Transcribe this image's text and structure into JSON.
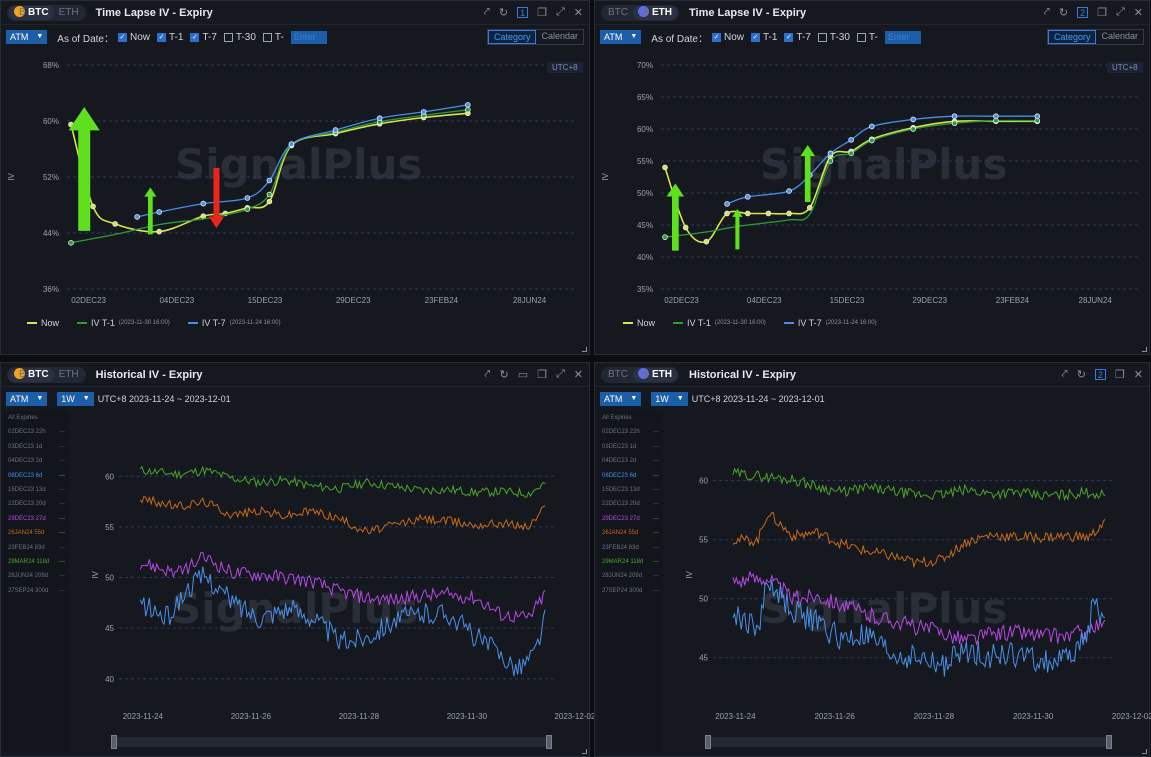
{
  "colors": {
    "now": "#d8e44a",
    "t1": "#2e9a3a",
    "t7": "#4a8fe6",
    "up_arrow": "#5fe01c",
    "down_arrow": "#e8261c",
    "h_green": "#4ca32a",
    "h_orange": "#c46a18",
    "h_purple": "#b44ae0",
    "h_blue": "#4a8fe6"
  },
  "panels": [
    {
      "coin": "BTC",
      "coin_glyph": "B",
      "toggle": [
        "BTC",
        "ETH"
      ],
      "title": "Time Lapse IV - Expiry",
      "badge": "1",
      "mode": "ATM",
      "as_of_label": "As of Date：",
      "checks": [
        {
          "label": "Now",
          "on": true
        },
        {
          "label": "T-1",
          "on": true
        },
        {
          "label": "T-7",
          "on": true
        },
        {
          "label": "T-30",
          "on": false
        },
        {
          "label": "T-",
          "on": false
        }
      ],
      "enter": "Enter",
      "seg": [
        "Category",
        "Calendar"
      ],
      "utc": "UTC+8",
      "watermark": "SignalPlus",
      "legend": [
        {
          "key": "now",
          "name": "Now",
          "ts": ""
        },
        {
          "key": "t1",
          "name": "IV T-1",
          "ts": "(2023-11-30 16:00)"
        },
        {
          "key": "t7",
          "name": "IV T-7",
          "ts": "(2023-11-24 16:00)"
        }
      ],
      "chart_data": {
        "type": "line",
        "xticks": [
          "02DEC23",
          "04DEC23",
          "15DEC23",
          "29DEC23",
          "23FEB24",
          "28JUN24"
        ],
        "yticks": [
          "68%",
          "60%",
          "52%",
          "44%",
          "36%"
        ],
        "ylabel": "IV",
        "ylim": [
          36,
          68
        ],
        "xrange": [
          0,
          11
        ],
        "series": [
          {
            "key": "now",
            "name": "Now",
            "x": [
              0,
              0.5,
              1,
              2,
              3,
              3.5,
              4,
              4.5,
              5,
              6,
              7,
              8,
              9
            ],
            "y": [
              59.5,
              47.8,
              45.3,
              44.2,
              46.4,
              46.8,
              47.6,
              48.5,
              56.5,
              58.2,
              59.6,
              60.5,
              61.1
            ]
          },
          {
            "key": "t1",
            "name": "IV T-1",
            "x": [
              0,
              1,
              2,
              3,
              3.5,
              4,
              4.5,
              5,
              6,
              7,
              8,
              9
            ],
            "y": [
              42.6,
              43.8,
              45.2,
              46.0,
              46.6,
              47.4,
              49.5,
              56.6,
              58.4,
              59.9,
              60.8,
              61.6
            ]
          },
          {
            "key": "t7",
            "name": "IV T-7",
            "x": [
              1.5,
              2,
              3,
              4,
              4.5,
              5,
              6,
              7,
              8,
              9
            ],
            "y": [
              46.3,
              47.0,
              48.2,
              49.0,
              51.5,
              56.7,
              58.7,
              60.4,
              61.3,
              62.3
            ]
          }
        ],
        "arrows": [
          {
            "dir": "up",
            "x": 0.3,
            "y_from": 44.3,
            "y_to": 62
          },
          {
            "dir": "up",
            "x": 1.8,
            "y_from": 43.8,
            "y_to": 50.5
          },
          {
            "dir": "down",
            "x": 3.3,
            "y_from": 53.3,
            "y_to": 44.7
          }
        ]
      }
    },
    {
      "coin": "ETH",
      "coin_glyph": "⧫",
      "toggle": [
        "BTC",
        "ETH"
      ],
      "title": "Time Lapse IV - Expiry",
      "badge": "2",
      "mode": "ATM",
      "as_of_label": "As of Date：",
      "checks": [
        {
          "label": "Now",
          "on": true
        },
        {
          "label": "T-1",
          "on": true
        },
        {
          "label": "T-7",
          "on": true
        },
        {
          "label": "T-30",
          "on": false
        },
        {
          "label": "T-",
          "on": false
        }
      ],
      "enter": "Enter",
      "seg": [
        "Category",
        "Calendar"
      ],
      "utc": "UTC+8",
      "watermark": "SignalPlus",
      "legend": [
        {
          "key": "now",
          "name": "Now",
          "ts": ""
        },
        {
          "key": "t1",
          "name": "IV T-1",
          "ts": "(2023-11-30 16:00)"
        },
        {
          "key": "t7",
          "name": "IV T-7",
          "ts": "(2023-11-24 16:00)"
        }
      ],
      "chart_data": {
        "type": "line",
        "xticks": [
          "02DEC23",
          "04DEC23",
          "15DEC23",
          "29DEC23",
          "23FEB24",
          "28JUN24"
        ],
        "yticks": [
          "70%",
          "65%",
          "60%",
          "55%",
          "50%",
          "45%",
          "40%",
          "35%"
        ],
        "ylabel": "IV",
        "ylim": [
          35,
          70
        ],
        "xrange": [
          0,
          11
        ],
        "series": [
          {
            "key": "now",
            "name": "Now",
            "x": [
              0,
              0.5,
              1,
              1.5,
              2,
              2.5,
              3,
              3.5,
              4,
              4.5,
              5,
              6,
              7,
              8,
              9
            ],
            "y": [
              54.0,
              44.6,
              42.4,
              46.8,
              46.8,
              46.8,
              46.8,
              47.7,
              55.7,
              56.5,
              58.4,
              60.2,
              61.2,
              61.2,
              61.2
            ]
          },
          {
            "key": "t1",
            "name": "IV T-1",
            "x": [
              0,
              1,
              1.5,
              2,
              3,
              3.5,
              4,
              4.5,
              5,
              6,
              7,
              8,
              9
            ],
            "y": [
              43.1,
              43.9,
              44.5,
              45.0,
              45.8,
              46.7,
              55.0,
              56.2,
              58.2,
              60.0,
              60.9,
              61.3,
              61.3
            ]
          },
          {
            "key": "t7",
            "name": "IV T-7",
            "x": [
              1.5,
              2,
              3,
              3.5,
              4,
              4.5,
              5,
              6,
              7,
              8,
              9
            ],
            "y": [
              48.3,
              49.4,
              50.3,
              52.8,
              56.2,
              58.3,
              60.4,
              61.5,
              62.0,
              62.0,
              62.0
            ]
          }
        ],
        "arrows": [
          {
            "dir": "up",
            "x": 0.25,
            "y_from": 41.0,
            "y_to": 51.5
          },
          {
            "dir": "up",
            "x": 1.75,
            "y_from": 41.2,
            "y_to": 47.5
          },
          {
            "dir": "up",
            "x": 3.45,
            "y_from": 48.6,
            "y_to": 57.5
          }
        ]
      }
    },
    {
      "coin": "BTC",
      "coin_glyph": "B",
      "toggle": [
        "BTC",
        "ETH"
      ],
      "title": "Historical IV - Expiry",
      "badge": "",
      "mode": "ATM",
      "period": "1W",
      "range": "UTC+8 2023-11-24 ~ 2023-12-01",
      "watermark": "SignalPlus",
      "expiries": [
        {
          "label": "All Expiries",
          "on": false
        },
        {
          "label": "02DEC23 22h",
          "on": false
        },
        {
          "label": "03DEC23 1d",
          "on": false
        },
        {
          "label": "04DEC23 2d",
          "on": false
        },
        {
          "label": "08DEC23 6d",
          "on": true,
          "color": "#4a8fe6"
        },
        {
          "label": "15DEC23 13d",
          "on": false
        },
        {
          "label": "22DEC23 20d",
          "on": false
        },
        {
          "label": "29DEC23 27d",
          "on": true,
          "color": "#b44ae0"
        },
        {
          "label": "26JAN24 55d",
          "on": true,
          "color": "#c46a18"
        },
        {
          "label": "23FEB24 83d",
          "on": false
        },
        {
          "label": "29MAR24 118d",
          "on": true,
          "color": "#4ca32a"
        },
        {
          "label": "28JUN24 209d",
          "on": false
        },
        {
          "label": "27SEP24 300d",
          "on": false
        }
      ],
      "chart_data": {
        "type": "line",
        "xticks": [
          "2023-11-24",
          "2023-11-26",
          "2023-11-28",
          "2023-11-30",
          "2023-12-02"
        ],
        "yticks": [
          "60",
          "55",
          "50",
          "45",
          "40"
        ],
        "ylabel": "IV",
        "ylim": [
          38,
          62.5
        ],
        "xrange": [
          0,
          8
        ],
        "series": [
          {
            "key": "h_green",
            "name": "29MAR24 118d",
            "x": [
              0.3,
              1,
              1.5,
              2,
              2.5,
              3,
              3.5,
              4,
              4.5,
              5,
              5.5,
              6,
              6.5,
              7,
              7.5,
              7.8
            ],
            "y": [
              60.6,
              60.2,
              60.6,
              59.8,
              59.4,
              59.6,
              59.0,
              58.8,
              59.4,
              59.0,
              58.6,
              58.7,
              58.4,
              58.5,
              58.3,
              59.3
            ]
          },
          {
            "key": "h_orange",
            "name": "26JAN24 55d",
            "x": [
              0.3,
              1,
              1.5,
              2,
              2.5,
              3,
              3.5,
              4,
              4.5,
              5,
              5.5,
              6,
              6.5,
              7,
              7.5,
              7.8
            ],
            "y": [
              57.8,
              57.0,
              57.5,
              56.2,
              56.6,
              56.1,
              56.6,
              55.8,
              54.5,
              55.2,
              55.8,
              55.6,
              55.2,
              55.4,
              55.0,
              57.0
            ]
          },
          {
            "key": "h_purple",
            "name": "29DEC23 27d",
            "x": [
              0.3,
              1,
              1.5,
              2,
              2.5,
              3,
              3.5,
              4,
              4.5,
              5,
              5.5,
              6,
              6.5,
              7,
              7.5,
              7.8
            ],
            "y": [
              51.5,
              50.4,
              52.0,
              50.5,
              50.3,
              50.0,
              49.6,
              48.6,
              48.0,
              47.8,
              48.2,
              48.3,
              48.0,
              46.3,
              46.0,
              48.4
            ]
          },
          {
            "key": "h_blue",
            "name": "08DEC23 6d",
            "x": [
              0.3,
              0.8,
              1.2,
              1.5,
              2,
              2.5,
              3,
              3.5,
              4,
              4.5,
              5,
              5.5,
              6,
              6.5,
              7,
              7.3,
              7.6,
              7.8
            ],
            "y": [
              47.4,
              46.0,
              49.0,
              50.2,
              47.6,
              46.1,
              47.0,
              46.1,
              43.6,
              44.2,
              45.8,
              46.4,
              46.5,
              44.2,
              42.3,
              41.0,
              42.5,
              46.0
            ]
          }
        ]
      }
    },
    {
      "coin": "ETH",
      "coin_glyph": "⧫",
      "toggle": [
        "BTC",
        "ETH"
      ],
      "title": "Historical IV - Expiry",
      "badge": "2",
      "mode": "ATM",
      "period": "1W",
      "range": "UTC+8 2023-11-24 ~ 2023-12-01",
      "watermark": "SignalPlus",
      "expiries": [
        {
          "label": "All Expiries",
          "on": false
        },
        {
          "label": "02DEC23 22h",
          "on": false
        },
        {
          "label": "03DEC23 1d",
          "on": false
        },
        {
          "label": "04DEC23 2d",
          "on": false
        },
        {
          "label": "08DEC23 6d",
          "on": true,
          "color": "#4a8fe6"
        },
        {
          "label": "15DEC23 13d",
          "on": false
        },
        {
          "label": "22DEC23 20d",
          "on": false
        },
        {
          "label": "29DEC23 27d",
          "on": true,
          "color": "#b44ae0"
        },
        {
          "label": "26JAN24 55d",
          "on": true,
          "color": "#c46a18"
        },
        {
          "label": "23FEB24 83d",
          "on": false
        },
        {
          "label": "29MAR24 118d",
          "on": true,
          "color": "#4ca32a"
        },
        {
          "label": "28JUN24 209d",
          "on": false
        },
        {
          "label": "27SEP24 300d",
          "on": false
        }
      ],
      "chart_data": {
        "type": "line",
        "xticks": [
          "2023-11-24",
          "2023-11-26",
          "2023-11-28",
          "2023-11-30",
          "2023-12-02"
        ],
        "yticks": [
          "60",
          "55",
          "50",
          "45"
        ],
        "ylabel": "IV",
        "ylim": [
          41.5,
          62.5
        ],
        "xrange": [
          0,
          8
        ],
        "series": [
          {
            "key": "h_green",
            "name": "29MAR24 118d",
            "x": [
              0.3,
              1,
              1.5,
              2,
              2.5,
              3,
              3.5,
              4,
              4.5,
              5,
              5.5,
              6,
              6.5,
              7,
              7.5,
              7.8
            ],
            "y": [
              60.6,
              60.3,
              60.1,
              59.5,
              59.0,
              59.4,
              59.1,
              58.8,
              58.8,
              59.2,
              58.9,
              59.0,
              58.7,
              58.8,
              59.0,
              58.7
            ]
          },
          {
            "key": "h_orange",
            "name": "26JAN24 55d",
            "x": [
              0.3,
              0.8,
              1,
              1.5,
              2,
              2.5,
              3,
              3.5,
              4,
              4.5,
              5,
              5.5,
              6,
              6.5,
              7,
              7.5,
              7.8
            ],
            "y": [
              55.0,
              54.9,
              57.3,
              55.3,
              55.6,
              54.6,
              54.0,
              53.6,
              53.0,
              53.3,
              54.8,
              55.4,
              55.2,
              55.2,
              55.3,
              55.2,
              56.6
            ]
          },
          {
            "key": "h_purple",
            "name": "29DEC23 27d",
            "x": [
              0.3,
              1,
              1.5,
              2,
              2.5,
              3,
              3.5,
              4,
              4.5,
              5,
              5.5,
              6,
              6.5,
              7,
              7.5,
              7.8
            ],
            "y": [
              51.5,
              51.8,
              50.0,
              50.3,
              49.5,
              48.6,
              48.2,
              47.6,
              47.2,
              46.5,
              47.0,
              47.2,
              46.9,
              46.8,
              47.4,
              47.8
            ]
          },
          {
            "key": "h_blue",
            "name": "08DEC23 6d",
            "x": [
              0.3,
              0.8,
              1,
              1.5,
              2,
              2.5,
              3,
              3.5,
              4,
              4.5,
              5,
              5.5,
              6,
              6.5,
              7,
              7.4,
              7.6,
              7.8
            ],
            "y": [
              48.6,
              47.5,
              51.4,
              49.0,
              48.0,
              46.5,
              46.8,
              45.2,
              45.0,
              44.3,
              45.6,
              45.2,
              45.3,
              44.7,
              44.8,
              46.5,
              50.0,
              47.5
            ]
          }
        ]
      }
    }
  ]
}
